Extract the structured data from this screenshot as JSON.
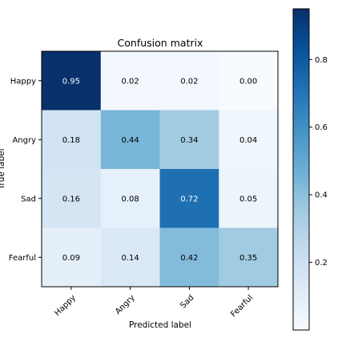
{
  "chart_data": {
    "type": "heatmap",
    "title": "Confusion matrix",
    "xlabel": "Predicted label",
    "ylabel": "True label",
    "x_categories": [
      "Happy",
      "Angry",
      "Sad",
      "Fearful"
    ],
    "y_categories": [
      "Happy",
      "Angry",
      "Sad",
      "Fearful"
    ],
    "values": [
      [
        0.95,
        0.02,
        0.02,
        0.0
      ],
      [
        0.18,
        0.44,
        0.34,
        0.04
      ],
      [
        0.16,
        0.08,
        0.72,
        0.05
      ],
      [
        0.09,
        0.14,
        0.42,
        0.35
      ]
    ],
    "cell_labels": [
      [
        "0.95",
        "0.02",
        "0.02",
        "0.00"
      ],
      [
        "0.18",
        "0.44",
        "0.34",
        "0.04"
      ],
      [
        "0.16",
        "0.08",
        "0.72",
        "0.05"
      ],
      [
        "0.09",
        "0.14",
        "0.42",
        "0.35"
      ]
    ],
    "colormap": "Blues",
    "color_range": [
      0.0,
      0.95
    ],
    "colorbar_ticks": [
      "0.2",
      "0.4",
      "0.6",
      "0.8"
    ],
    "colorbar_tick_values": [
      0.2,
      0.4,
      0.6,
      0.8
    ],
    "colors": {
      "low": "#f7fbff",
      "high": "#08306b",
      "text_dark": "#000000",
      "text_light": "#ffffff"
    }
  }
}
